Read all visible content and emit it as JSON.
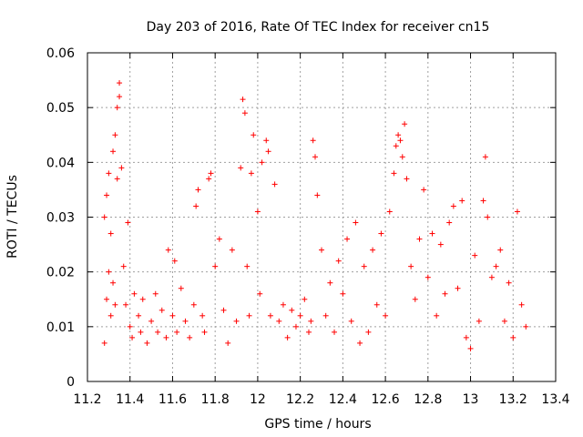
{
  "chart_data": {
    "type": "scatter",
    "title": "Day 203 of 2016, Rate Of TEC Index for receiver cn15",
    "xlabel": "GPS time / hours",
    "ylabel": "ROTI / TECUs",
    "xlim": [
      11.2,
      13.4
    ],
    "ylim": [
      0,
      0.06
    ],
    "xticks": [
      "11.2",
      "11.4",
      "11.6",
      "11.8",
      "12",
      "12.2",
      "12.4",
      "12.6",
      "12.8",
      "13",
      "13.2",
      "13.4"
    ],
    "yticks": [
      "0",
      "0.01",
      "0.02",
      "0.03",
      "0.04",
      "0.05",
      "0.06"
    ],
    "grid": true,
    "marker": "plus",
    "color": "#ff0000",
    "series": [
      {
        "name": "ROTI",
        "x": [
          11.28,
          11.28,
          11.29,
          11.29,
          11.3,
          11.3,
          11.31,
          11.31,
          11.32,
          11.32,
          11.33,
          11.33,
          11.34,
          11.34,
          11.35,
          11.35,
          11.36,
          11.37,
          11.38,
          11.39,
          11.4,
          11.41,
          11.42,
          11.44,
          11.45,
          11.46,
          11.48,
          11.5,
          11.52,
          11.53,
          11.55,
          11.57,
          11.58,
          11.6,
          11.61,
          11.62,
          11.64,
          11.66,
          11.68,
          11.7,
          11.71,
          11.72,
          11.74,
          11.75,
          11.77,
          11.78,
          11.8,
          11.82,
          11.84,
          11.86,
          11.88,
          11.9,
          11.92,
          11.93,
          11.94,
          11.95,
          11.96,
          11.97,
          11.98,
          12.0,
          12.01,
          12.02,
          12.04,
          12.05,
          12.06,
          12.08,
          12.1,
          12.12,
          12.14,
          12.16,
          12.18,
          12.2,
          12.22,
          12.24,
          12.25,
          12.26,
          12.27,
          12.28,
          12.3,
          12.32,
          12.34,
          12.36,
          12.38,
          12.4,
          12.42,
          12.44,
          12.46,
          12.48,
          12.5,
          12.52,
          12.54,
          12.56,
          12.58,
          12.6,
          12.62,
          12.64,
          12.65,
          12.66,
          12.67,
          12.68,
          12.69,
          12.7,
          12.72,
          12.74,
          12.76,
          12.78,
          12.8,
          12.82,
          12.84,
          12.86,
          12.88,
          12.9,
          12.92,
          12.94,
          12.96,
          12.98,
          13.0,
          13.02,
          13.04,
          13.06,
          13.07,
          13.08,
          13.1,
          13.12,
          13.14,
          13.16,
          13.18,
          13.2,
          13.22,
          13.24,
          13.26
        ],
        "y": [
          0.007,
          0.03,
          0.015,
          0.034,
          0.02,
          0.038,
          0.012,
          0.027,
          0.018,
          0.042,
          0.014,
          0.045,
          0.037,
          0.05,
          0.052,
          0.0545,
          0.039,
          0.021,
          0.014,
          0.029,
          0.01,
          0.008,
          0.016,
          0.012,
          0.009,
          0.015,
          0.007,
          0.011,
          0.016,
          0.009,
          0.013,
          0.008,
          0.024,
          0.012,
          0.022,
          0.009,
          0.017,
          0.011,
          0.008,
          0.014,
          0.032,
          0.035,
          0.012,
          0.009,
          0.037,
          0.038,
          0.021,
          0.026,
          0.013,
          0.007,
          0.024,
          0.011,
          0.039,
          0.0515,
          0.049,
          0.021,
          0.012,
          0.038,
          0.045,
          0.031,
          0.016,
          0.04,
          0.044,
          0.042,
          0.012,
          0.036,
          0.011,
          0.014,
          0.008,
          0.013,
          0.01,
          0.012,
          0.015,
          0.009,
          0.011,
          0.044,
          0.041,
          0.034,
          0.024,
          0.012,
          0.018,
          0.009,
          0.022,
          0.016,
          0.026,
          0.011,
          0.029,
          0.007,
          0.021,
          0.009,
          0.024,
          0.014,
          0.027,
          0.012,
          0.031,
          0.038,
          0.043,
          0.045,
          0.044,
          0.041,
          0.047,
          0.037,
          0.021,
          0.015,
          0.026,
          0.035,
          0.019,
          0.027,
          0.012,
          0.025,
          0.016,
          0.029,
          0.032,
          0.017,
          0.033,
          0.008,
          0.006,
          0.023,
          0.011,
          0.033,
          0.041,
          0.03,
          0.019,
          0.021,
          0.024,
          0.011,
          0.018,
          0.008,
          0.031,
          0.014,
          0.01
        ]
      }
    ]
  }
}
